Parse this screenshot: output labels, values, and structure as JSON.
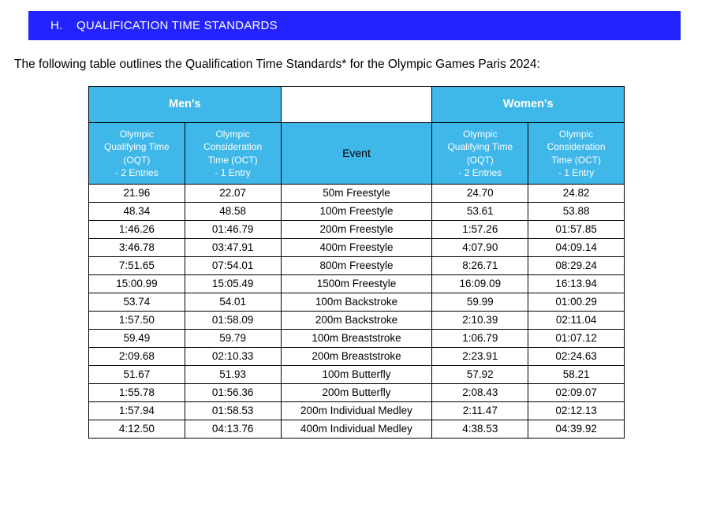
{
  "header": {
    "letter": "H.",
    "title": "QUALIFICATION TIME STANDARDS"
  },
  "intro": "The following table outlines the Qualification Time Standards* for the Olympic Games Paris 2024:",
  "table": {
    "gender_mens": "Men's",
    "gender_womens": "Women's",
    "event_head": "Event",
    "sub_oqt_l1": "Olympic",
    "sub_oqt_l2": "Qualifying Time",
    "sub_oqt_l3": "(OQT)",
    "sub_oqt_l4": "- 2 Entries",
    "sub_oct_l1": "Olympic",
    "sub_oct_l2": "Consideration",
    "sub_oct_l3": "Time (OCT)",
    "sub_oct_l4": "- 1 Entry",
    "rows": [
      {
        "m_oqt": "21.96",
        "m_oct": "22.07",
        "event": "50m Freestyle",
        "w_oqt": "24.70",
        "w_oct": "24.82"
      },
      {
        "m_oqt": "48.34",
        "m_oct": "48.58",
        "event": "100m Freestyle",
        "w_oqt": "53.61",
        "w_oct": "53.88"
      },
      {
        "m_oqt": "1:46.26",
        "m_oct": "01:46.79",
        "event": "200m Freestyle",
        "w_oqt": "1:57.26",
        "w_oct": "01:57.85"
      },
      {
        "m_oqt": "3:46.78",
        "m_oct": "03:47.91",
        "event": "400m Freestyle",
        "w_oqt": "4:07.90",
        "w_oct": "04:09.14"
      },
      {
        "m_oqt": "7:51.65",
        "m_oct": "07:54.01",
        "event": "800m Freestyle",
        "w_oqt": "8:26.71",
        "w_oct": "08:29.24"
      },
      {
        "m_oqt": "15:00.99",
        "m_oct": "15:05.49",
        "event": "1500m Freestyle",
        "w_oqt": "16:09.09",
        "w_oct": "16:13.94"
      },
      {
        "m_oqt": "53.74",
        "m_oct": "54.01",
        "event": "100m Backstroke",
        "w_oqt": "59.99",
        "w_oct": "01:00.29"
      },
      {
        "m_oqt": "1:57.50",
        "m_oct": "01:58.09",
        "event": "200m Backstroke",
        "w_oqt": "2:10.39",
        "w_oct": "02:11.04"
      },
      {
        "m_oqt": "59.49",
        "m_oct": "59.79",
        "event": "100m Breaststroke",
        "w_oqt": "1:06.79",
        "w_oct": "01:07.12"
      },
      {
        "m_oqt": "2:09.68",
        "m_oct": "02:10.33",
        "event": "200m Breaststroke",
        "w_oqt": "2:23.91",
        "w_oct": "02:24.63"
      },
      {
        "m_oqt": "51.67",
        "m_oct": "51.93",
        "event": "100m Butterfly",
        "w_oqt": "57.92",
        "w_oct": "58.21"
      },
      {
        "m_oqt": "1:55.78",
        "m_oct": "01:56.36",
        "event": "200m Butterfly",
        "w_oqt": "2:08.43",
        "w_oct": "02:09.07"
      },
      {
        "m_oqt": "1:57.94",
        "m_oct": "01:58.53",
        "event": "200m Individual Medley",
        "w_oqt": "2:11.47",
        "w_oct": "02:12.13"
      },
      {
        "m_oqt": "4:12.50",
        "m_oct": "04:13.76",
        "event": "400m Individual Medley",
        "w_oqt": "4:38.53",
        "w_oct": "04:39.92"
      }
    ]
  }
}
